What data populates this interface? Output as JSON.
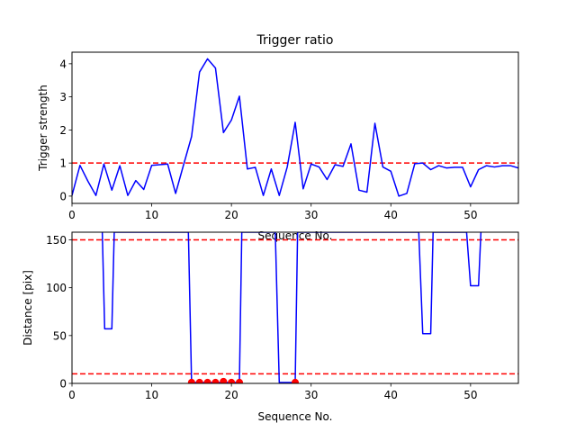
{
  "chart_data": [
    {
      "type": "line",
      "title": "Trigger ratio",
      "xlabel": "Sequence No.",
      "ylabel": "Trigger strength",
      "xlim": [
        0,
        56
      ],
      "ylim": [
        -0.22,
        4.35
      ],
      "xticks": [
        "0",
        "10",
        "20",
        "30",
        "40",
        "50"
      ],
      "yticks": [
        "0",
        "1",
        "2",
        "3",
        "4"
      ],
      "series": [
        {
          "color": "#0000ff",
          "x": [
            0,
            1,
            2,
            3,
            4,
            5,
            6,
            7,
            8,
            9,
            10,
            11,
            12,
            13,
            14,
            15,
            16,
            17,
            18,
            19,
            20,
            21,
            22,
            23,
            24,
            25,
            26,
            27,
            28,
            29,
            30,
            31,
            32,
            33,
            34,
            35,
            36,
            37,
            38,
            39,
            40,
            41,
            42,
            43,
            44,
            45,
            46,
            47,
            48,
            49,
            50,
            51,
            52,
            53,
            54,
            55,
            56
          ],
          "y": [
            0.02,
            0.93,
            0.45,
            0.02,
            0.97,
            0.18,
            0.92,
            0.02,
            0.47,
            0.2,
            0.93,
            0.95,
            0.97,
            0.08,
            0.95,
            1.8,
            3.75,
            4.15,
            3.87,
            1.92,
            2.3,
            3.02,
            0.82,
            0.87,
            0.02,
            0.82,
            0.02,
            0.88,
            2.23,
            0.22,
            0.97,
            0.88,
            0.5,
            0.95,
            0.9,
            1.58,
            0.18,
            0.12,
            2.2,
            0.88,
            0.75,
            0.0,
            0.08,
            0.98,
            1.0,
            0.8,
            0.92,
            0.85,
            0.87,
            0.87,
            0.28,
            0.8,
            0.92,
            0.88,
            0.92,
            0.92,
            0.85
          ]
        }
      ],
      "hlines": [
        {
          "y": 1.0,
          "color": "#ff0000",
          "style": "dashed"
        }
      ]
    },
    {
      "type": "line",
      "title": "",
      "xlabel": "Sequence No.",
      "ylabel": "Distance [pix]",
      "xlim": [
        0,
        56
      ],
      "ylim": [
        0,
        158
      ],
      "xticks": [
        "0",
        "10",
        "20",
        "30",
        "40",
        "50"
      ],
      "yticks": [
        "0",
        "50",
        "100",
        "150"
      ],
      "series": [
        {
          "color": "#0000ff",
          "x": [
            3.8,
            4.1,
            5,
            5.3,
            5.6,
            14.6,
            15,
            16,
            17,
            18,
            19,
            20,
            21,
            21.3,
            21.6,
            25.5,
            26,
            27,
            28,
            28.3,
            43.5,
            44,
            45,
            45.3,
            49.5,
            50,
            51,
            51.3
          ],
          "y": [
            158,
            57,
            57,
            158,
            158,
            158,
            1,
            1,
            1,
            1,
            1,
            1,
            1,
            158,
            158,
            158,
            1,
            1,
            1,
            158,
            158,
            52,
            52,
            158,
            158,
            102,
            102,
            158
          ]
        }
      ],
      "points": {
        "color": "#ff0000",
        "x": [
          15,
          16,
          17,
          18,
          19,
          20,
          21,
          28
        ],
        "y": [
          1,
          1,
          1,
          1,
          2,
          1,
          1,
          1
        ]
      },
      "hlines": [
        {
          "y": 150,
          "color": "#ff0000",
          "style": "dashed"
        },
        {
          "y": 10,
          "color": "#ff0000",
          "style": "dashed"
        }
      ]
    }
  ]
}
